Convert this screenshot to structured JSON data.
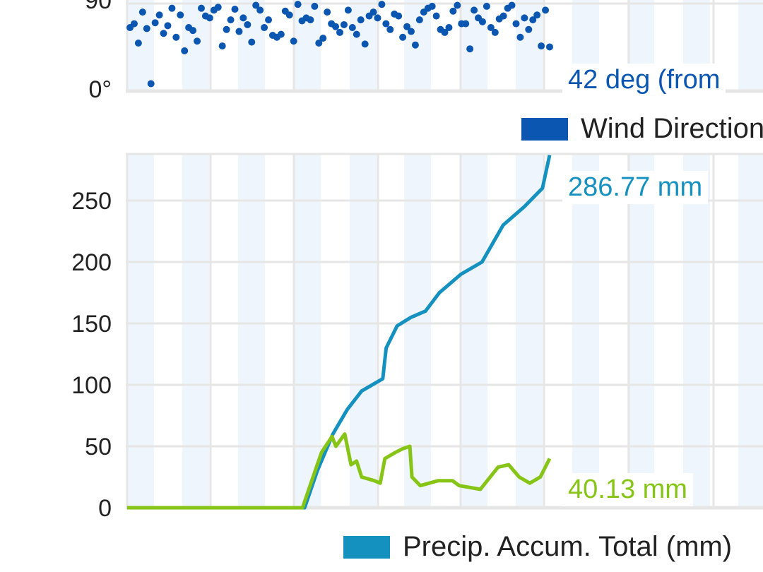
{
  "colors": {
    "wind": "#0a56b0",
    "total": "#1591bf",
    "rate": "#86c415",
    "band": "#eef5fc",
    "grid": "#e6e6e6"
  },
  "wind_chart": {
    "y_ticks": [
      "0°",
      "90"
    ],
    "current_value": "42 deg (from",
    "legend": "Wind Direction",
    "chart_data": {
      "type": "scatter",
      "ylabel": "Wind Direction",
      "ylim": [
        0,
        90
      ],
      "x": [
        0,
        1,
        2,
        3,
        4,
        5,
        6,
        7,
        8,
        9,
        10,
        11,
        12,
        13,
        14,
        15,
        16,
        17,
        18,
        19,
        20,
        21,
        22,
        23,
        24,
        25,
        26,
        27,
        28,
        29,
        30,
        31,
        32,
        33,
        34,
        35,
        36,
        37,
        38,
        39,
        40,
        41,
        42,
        43,
        44,
        45,
        46,
        47,
        48,
        49,
        50,
        51,
        52,
        53,
        54,
        55,
        56,
        57,
        58,
        59,
        60,
        61,
        62,
        63,
        64,
        65,
        66,
        67,
        68,
        69,
        70,
        71,
        72,
        73,
        74,
        75,
        76,
        77,
        78,
        79,
        80,
        81,
        82,
        83,
        84,
        85,
        86,
        87,
        88,
        89,
        90,
        91,
        92,
        93,
        94,
        95,
        96,
        97,
        98,
        99,
        100
      ],
      "y": [
        62,
        66,
        46,
        78,
        61,
        4,
        67,
        75,
        56,
        64,
        82,
        52,
        75,
        38,
        62,
        59,
        48,
        82,
        74,
        72,
        80,
        83,
        43,
        60,
        70,
        81,
        58,
        72,
        65,
        47,
        85,
        80,
        62,
        70,
        54,
        52,
        55,
        79,
        75,
        48,
        86,
        69,
        72,
        70,
        84,
        46,
        51,
        78,
        66,
        63,
        57,
        65,
        80,
        62,
        55,
        70,
        45,
        74,
        78,
        72,
        86,
        66,
        60,
        76,
        74,
        52,
        63,
        58,
        44,
        70,
        78,
        82,
        84,
        74,
        60,
        57,
        62,
        79,
        85,
        66,
        66,
        40,
        80,
        72,
        68,
        84,
        62,
        57,
        71,
        74,
        82,
        85,
        66,
        52,
        72,
        60,
        70,
        75,
        43,
        80,
        42
      ]
    }
  },
  "precip_chart": {
    "y_ticks": [
      "0",
      "50",
      "100",
      "150",
      "200",
      "250"
    ],
    "total_value": "286.77 mm",
    "rate_value": "40.13 mm",
    "legend": "Precip. Accum. Total (mm)",
    "chart_data": {
      "type": "line",
      "ylim": [
        0,
        290
      ],
      "xlim": [
        0,
        100
      ],
      "series": [
        {
          "name": "Precip. Accum. Total",
          "x": [
            0,
            42,
            45,
            48.7,
            52.1,
            55.5,
            60.5,
            61.3,
            63.9,
            67.2,
            70.6,
            73.9,
            79,
            84,
            89,
            94,
            98.3,
            100
          ],
          "values": [
            0,
            0,
            30,
            60,
            80,
            95,
            105,
            130,
            148,
            155,
            160,
            175,
            190,
            200,
            230,
            245,
            260,
            287
          ]
        },
        {
          "name": "Precip. Accum.",
          "x": [
            0,
            41.5,
            43.5,
            46,
            48.5,
            49.4,
            51.5,
            53,
            54.3,
            55.5,
            58.5,
            59.9,
            61,
            63.5,
            65.2,
            66.9,
            67.4,
            69.4,
            73.6,
            77,
            78.6,
            83.6,
            87.8,
            90.3,
            92.8,
            95.3,
            97.8,
            100
          ],
          "values": [
            0,
            0,
            20,
            45,
            58,
            50,
            60,
            35,
            38,
            25,
            22,
            20,
            40,
            45,
            48,
            50,
            25,
            18,
            22,
            22,
            18,
            15,
            33,
            35,
            25,
            20,
            25,
            40
          ]
        }
      ]
    }
  }
}
